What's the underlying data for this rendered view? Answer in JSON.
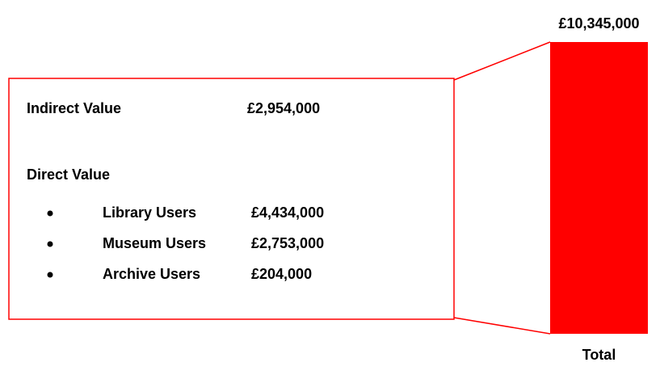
{
  "chart_data": {
    "type": "bar",
    "categories": [
      "Total"
    ],
    "values": [
      10345000
    ],
    "value_labels": [
      "£10,345,000"
    ],
    "color": "#ff0000"
  },
  "breakdown": {
    "indirect": {
      "label": "Indirect Value",
      "value": "£2,954,000"
    },
    "direct": {
      "label": "Direct Value",
      "items": [
        {
          "label": "Library Users",
          "value": "£4,434,000"
        },
        {
          "label": "Museum Users",
          "value": "£2,753,000"
        },
        {
          "label": "Archive Users",
          "value": "£204,000"
        }
      ]
    }
  }
}
